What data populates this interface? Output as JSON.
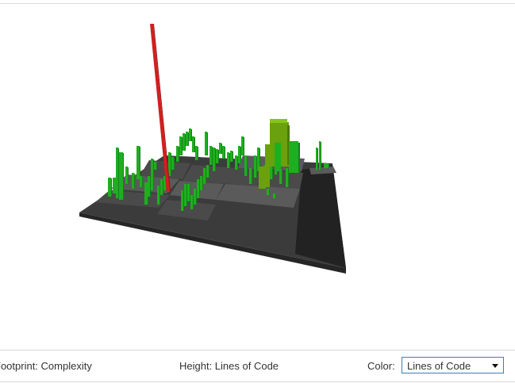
{
  "footer": {
    "footprint_label": "Footprint: Complexity",
    "height_label": "Height: Lines of Code",
    "color_label": "Color:",
    "color_select_value": "Lines of Code"
  },
  "scene": {
    "colors": {
      "platform_top": "#3b3b3b",
      "platform_side": "#262626",
      "module_top": "#4a4a4a",
      "module_top_light": "#5a5a5a",
      "module_side": "#333333",
      "bar_green": "#1fae1f",
      "bar_green_dark": "#14801a",
      "bar_olive": "#6aa10c",
      "bar_olive_dark": "#4d7a07",
      "bar_red": "#d11f1f",
      "bar_red_dark": "#9a1212"
    }
  }
}
